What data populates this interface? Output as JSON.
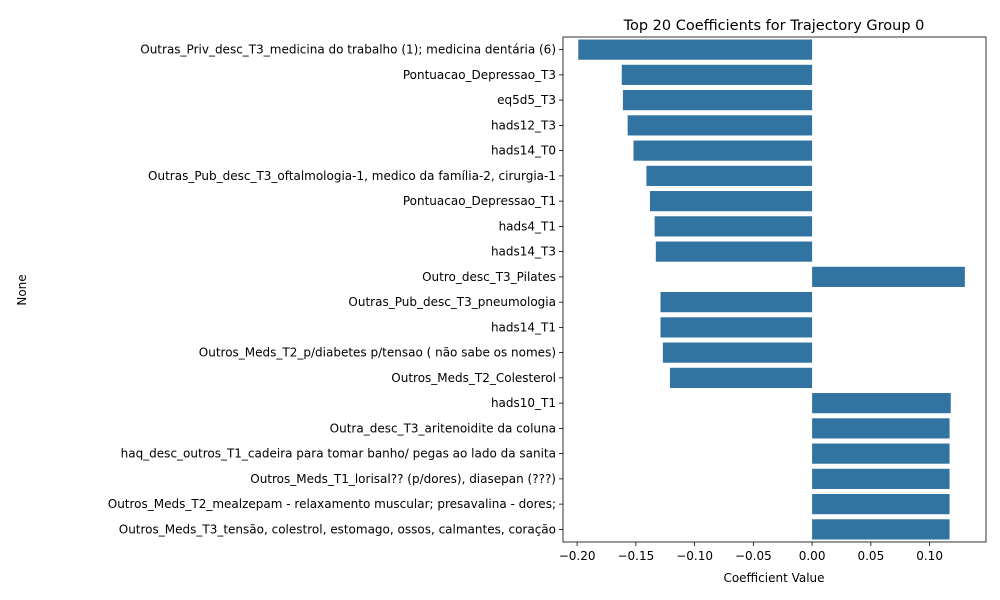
{
  "chart_data": {
    "type": "bar",
    "orientation": "horizontal",
    "title": "Top 20 Coefficients for Trajectory Group 0",
    "xlabel": "Coefficient Value",
    "ylabel": "None",
    "xlim": [
      -0.212,
      0.148
    ],
    "xticks": [
      -0.2,
      -0.15,
      -0.1,
      -0.05,
      0.0,
      0.05,
      0.1
    ],
    "xtick_labels": [
      "−0.20",
      "−0.15",
      "−0.10",
      "−0.05",
      "0.00",
      "0.05",
      "0.10"
    ],
    "grid": false,
    "bar_color": "#3274a1",
    "categories": [
      "Outras_Priv_desc_T3_medicina do trabalho (1); medicina dentária (6)",
      "Pontuacao_Depressao_T3",
      "eq5d5_T3",
      "hads12_T3",
      "hads14_T0",
      "Outras_Pub_desc_T3_oftalmologia-1, medico da família-2, cirurgia-1",
      "Pontuacao_Depressao_T1",
      "hads4_T1",
      "hads14_T3",
      "Outro_desc_T3_Pilates",
      "Outras_Pub_desc_T3_pneumologia",
      "hads14_T1",
      "Outros_Meds_T2_p/diabetes  p/tensao ( não sabe os nomes)",
      "Outros_Meds_T2_Colesterol",
      "hads10_T1",
      "Outra_desc_T3_aritenoidite da coluna",
      "haq_desc_outros_T1_cadeira para tomar banho/ pegas ao lado da sanita",
      "Outros_Meds_T1_lorisal?? (p/dores), diasepan (???)",
      "Outros_Meds_T2_mealzepam - relaxamento muscular; presavalina - dores;",
      "Outros_Meds_T3_tensão, colestrol, estomago, ossos, calmantes, coração"
    ],
    "values": [
      -0.199,
      -0.162,
      -0.161,
      -0.157,
      -0.152,
      -0.141,
      -0.138,
      -0.134,
      -0.133,
      0.13,
      -0.129,
      -0.129,
      -0.127,
      -0.121,
      0.118,
      0.117,
      0.117,
      0.117,
      0.117,
      0.117
    ]
  }
}
